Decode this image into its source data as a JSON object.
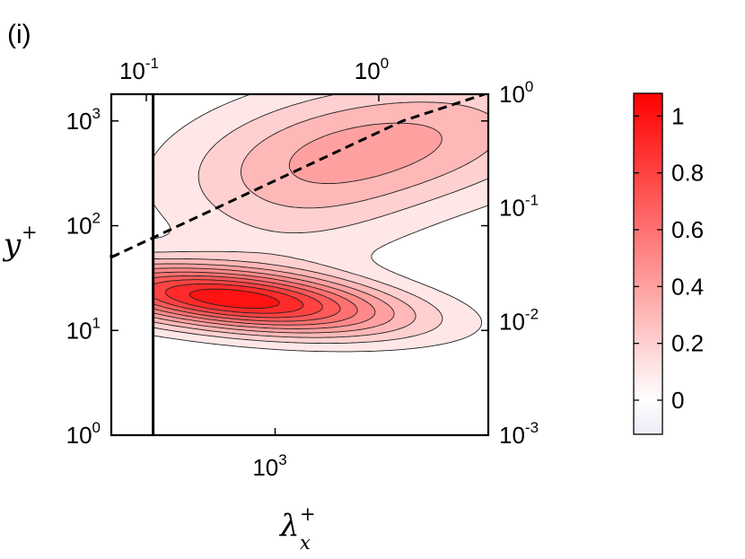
{
  "panel_label": "(i)",
  "colors": {
    "background": "#ffffff",
    "axis": "#000000",
    "colormap_low": "#ececf8",
    "colormap_zero": "#ffffff",
    "colormap_high": "#ff0000"
  },
  "chart_data": {
    "type": "heatmap",
    "subtype": "filled-contour",
    "title": "",
    "panel_label": "(i)",
    "xlabel": {
      "base": "λ",
      "sub": "x",
      "sup": "+"
    },
    "ylabel": {
      "base": "y",
      "sup": "+"
    },
    "x_scale": "log",
    "y_scale": "log",
    "xlim": [
      100,
      20000
    ],
    "ylim": [
      1,
      1800
    ],
    "x_ticks": [
      {
        "value": 1000,
        "base": "10",
        "exp": "3"
      }
    ],
    "y_ticks": [
      {
        "value": 1,
        "base": "10",
        "exp": "0"
      },
      {
        "value": 10,
        "base": "10",
        "exp": "1"
      },
      {
        "value": 100,
        "base": "10",
        "exp": "2"
      },
      {
        "value": 1000,
        "base": "10",
        "exp": "3"
      }
    ],
    "top_axis": {
      "scale": "log",
      "ticks": [
        {
          "base": "10",
          "exp": "-1"
        },
        {
          "base": "10",
          "exp": "0"
        }
      ]
    },
    "right_axis": {
      "scale": "log",
      "ticks": [
        {
          "base": "10",
          "exp": "-3"
        },
        {
          "base": "10",
          "exp": "-2"
        },
        {
          "base": "10",
          "exp": "-1"
        },
        {
          "base": "10",
          "exp": "0"
        }
      ]
    },
    "contour_levels": [
      0.1,
      0.2,
      0.3,
      0.4,
      0.5,
      0.6,
      0.7,
      0.8,
      0.9,
      1.0
    ],
    "peak": {
      "x": 550,
      "y": 20,
      "value": 1.05
    },
    "field_components": [
      {
        "cx": 550,
        "cy": 20,
        "ax": 5.0,
        "ay": 1.6,
        "tilt": -0.15,
        "amplitude": 1.05
      },
      {
        "cx": 5000,
        "cy": 600,
        "ax": 6.5,
        "ay": 2.8,
        "tilt": 0.2,
        "amplitude": 0.42
      },
      {
        "cx": 1300,
        "cy": 140,
        "ax": 3.2,
        "ay": 3.6,
        "tilt": 0.0,
        "amplitude": 0.12
      }
    ],
    "cutoff_line": {
      "style": "solid",
      "x": 180
    },
    "reference_line": {
      "style": "dashed",
      "points": [
        {
          "x": 100,
          "y": 50
        },
        {
          "x": 6000,
          "y": 1000
        },
        {
          "x": 19000,
          "y": 1800
        }
      ]
    },
    "colorbar": {
      "range": [
        -0.12,
        1.08
      ],
      "ticks": [
        0,
        0.2,
        0.4,
        0.6,
        0.8,
        1
      ],
      "tick_labels": [
        "0",
        "0.2",
        "0.4",
        "0.6",
        "0.8",
        "1"
      ]
    }
  }
}
